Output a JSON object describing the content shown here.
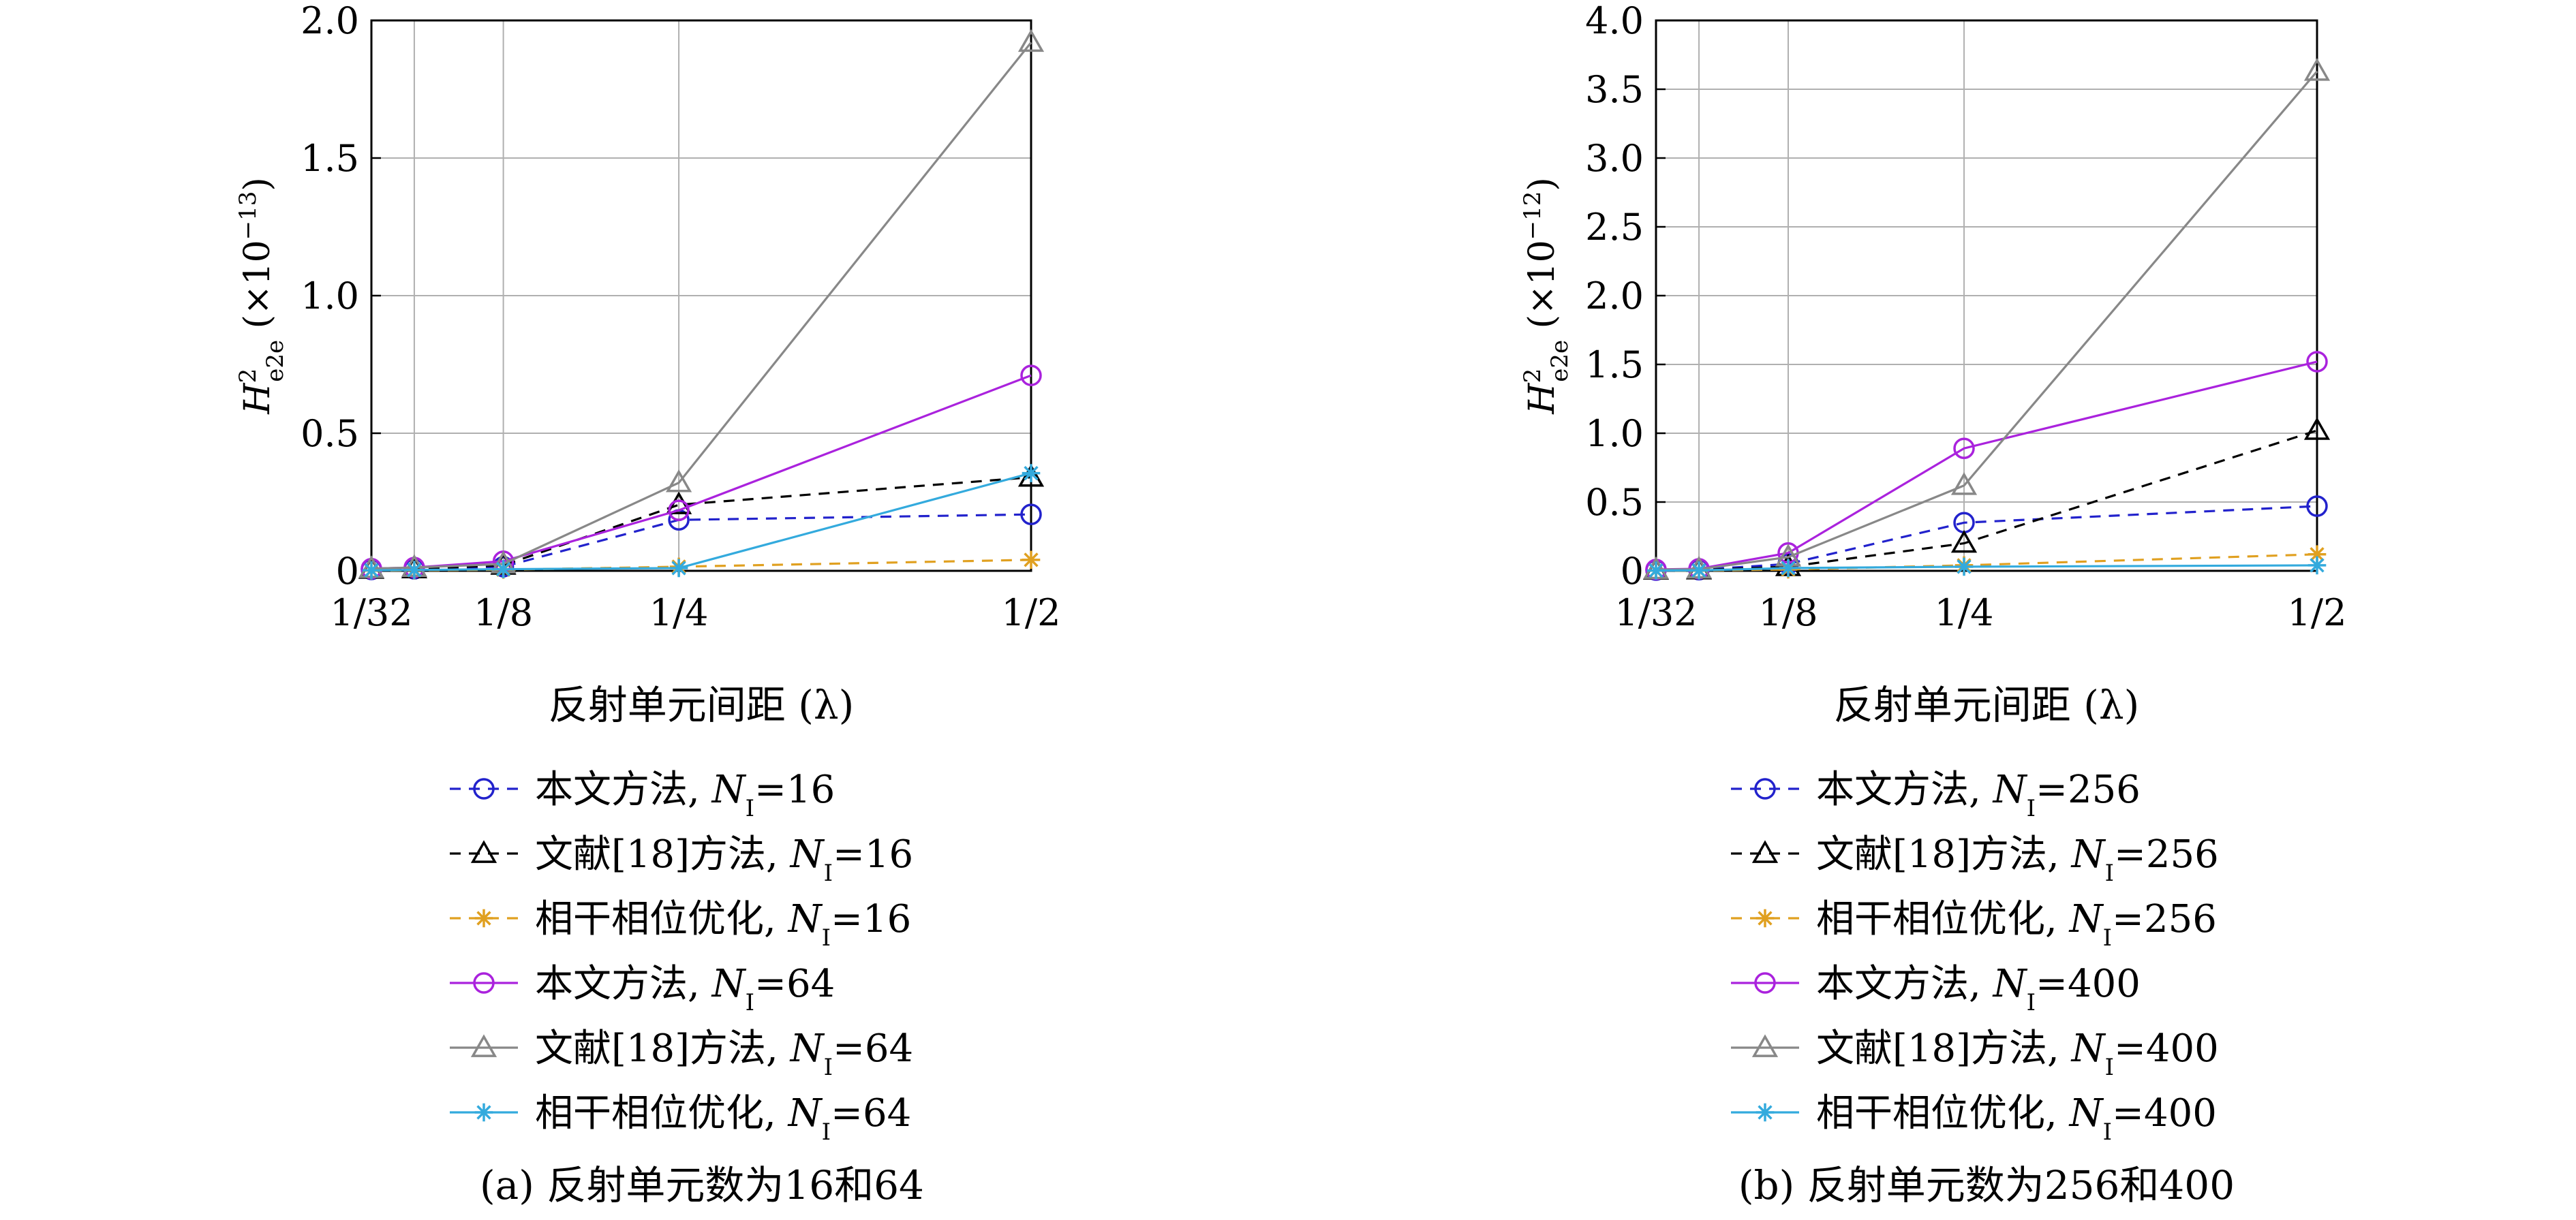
{
  "chart_data": [
    {
      "type": "line",
      "caption": "(a) 反射单元数为16和64",
      "xlabel": "反射单元间距 (λ)",
      "ylabel": {
        "symbol": "H",
        "sup": "2",
        "sub": "e2e",
        "unit": "(×10",
        "exp": "−13",
        "close": ")"
      },
      "x": [
        "1/32",
        "1/16",
        "1/8",
        "1/4",
        "1/2"
      ],
      "x_ticks": [
        "1/32",
        "1/8",
        "1/4",
        "1/2"
      ],
      "ylim": [
        0,
        2.0
      ],
      "y_ticks": [
        "0",
        "0.5",
        "1.0",
        "1.5",
        "2.0"
      ],
      "grid": true,
      "legend_position": "below",
      "series": [
        {
          "name": "本文方法, N",
          "nsub": "I",
          "nval": "=16",
          "values": [
            0.005,
            0.007,
            0.015,
            0.185,
            0.205
          ],
          "color": "#2222cc",
          "dash": true,
          "marker": "circle"
        },
        {
          "name": "文献[18]方法, N",
          "nsub": "I",
          "nval": "=16",
          "values": [
            0.005,
            0.007,
            0.02,
            0.24,
            0.34
          ],
          "color": "#000000",
          "dash": true,
          "marker": "triangle"
        },
        {
          "name": "相干相位优化, N",
          "nsub": "I",
          "nval": "=16",
          "values": [
            0.001,
            0.002,
            0.004,
            0.015,
            0.04
          ],
          "color": "#e0a020",
          "dash": true,
          "marker": "star"
        },
        {
          "name": "本文方法, N",
          "nsub": "I",
          "nval": "=64",
          "values": [
            0.008,
            0.012,
            0.035,
            0.22,
            0.71
          ],
          "color": "#aa22dd",
          "dash": false,
          "marker": "circle"
        },
        {
          "name": "文献[18]方法, N",
          "nsub": "I",
          "nval": "=64",
          "values": [
            0.008,
            0.012,
            0.025,
            0.32,
            1.92
          ],
          "color": "#888888",
          "dash": false,
          "marker": "triangle"
        },
        {
          "name": "相干相位优化, N",
          "nsub": "I",
          "nval": "=64",
          "values": [
            0.002,
            0.003,
            0.006,
            0.01,
            0.355
          ],
          "color": "#33aadd",
          "dash": false,
          "marker": "star"
        }
      ]
    },
    {
      "type": "line",
      "caption": "(b) 反射单元数为256和400",
      "xlabel": "反射单元间距 (λ)",
      "ylabel": {
        "symbol": "H",
        "sup": "2",
        "sub": "e2e",
        "unit": "(×10",
        "exp": "−12",
        "close": ")"
      },
      "x": [
        "1/32",
        "1/16",
        "1/8",
        "1/4",
        "1/2"
      ],
      "x_ticks": [
        "1/32",
        "1/8",
        "1/4",
        "1/2"
      ],
      "ylim": [
        0,
        4.0
      ],
      "y_ticks": [
        "0",
        "0.5",
        "1.0",
        "1.5",
        "2.0",
        "2.5",
        "3.0",
        "3.5",
        "4.0"
      ],
      "grid": true,
      "legend_position": "below",
      "series": [
        {
          "name": "本文方法, N",
          "nsub": "I",
          "nval": "=256",
          "values": [
            0.005,
            0.008,
            0.05,
            0.35,
            0.47
          ],
          "color": "#2222cc",
          "dash": true,
          "marker": "circle"
        },
        {
          "name": "文献[18]方法, N",
          "nsub": "I",
          "nval": "=256",
          "values": [
            0.004,
            0.006,
            0.03,
            0.2,
            1.02
          ],
          "color": "#000000",
          "dash": true,
          "marker": "triangle"
        },
        {
          "name": "相干相位优化, N",
          "nsub": "I",
          "nval": "=256",
          "values": [
            0.001,
            0.002,
            0.01,
            0.04,
            0.12
          ],
          "color": "#e0a020",
          "dash": true,
          "marker": "star"
        },
        {
          "name": "本文方法, N",
          "nsub": "I",
          "nval": "=400",
          "values": [
            0.01,
            0.015,
            0.13,
            0.89,
            1.52
          ],
          "color": "#aa22dd",
          "dash": false,
          "marker": "circle"
        },
        {
          "name": "文献[18]方法, N",
          "nsub": "I",
          "nval": "=400",
          "values": [
            0.008,
            0.012,
            0.1,
            0.62,
            3.63
          ],
          "color": "#888888",
          "dash": false,
          "marker": "triangle"
        },
        {
          "name": "相干相位优化, N",
          "nsub": "I",
          "nval": "=400",
          "values": [
            0.002,
            0.003,
            0.02,
            0.03,
            0.04
          ],
          "color": "#33aadd",
          "dash": false,
          "marker": "star"
        }
      ]
    }
  ]
}
